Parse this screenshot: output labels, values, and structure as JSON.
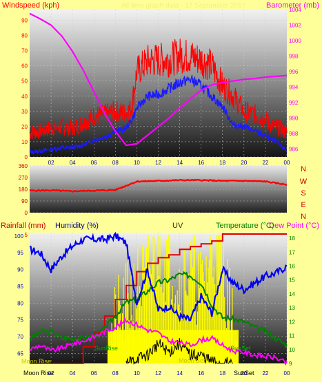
{
  "colors": {
    "page_bg": "#ffff99",
    "wind_avg": "#1a1aff",
    "wind_gust": "#ff0000",
    "barometer": "#ff00ff",
    "direction": "#ff0000",
    "rainfall": "#dd0000",
    "humidity": "#0000ee",
    "uv": "#ffff00",
    "temperature": "#008000",
    "dewpoint": "#ff00ff",
    "solar": "#000000"
  },
  "top_panel": {
    "title_left": "Windspeed (kph)",
    "title_right": "Barometer (mb)",
    "faint_caption": "All time graph data - 17 September 2017",
    "y_left_ticks": [
      "0",
      "10",
      "20",
      "30",
      "40",
      "50",
      "60",
      "70",
      "80",
      "90"
    ],
    "y_right_ticks": [
      "986",
      "988",
      "990",
      "992",
      "994",
      "996",
      "998",
      "1000",
      "1002",
      "1004"
    ],
    "x_ticks": [
      "02",
      "04",
      "06",
      "08",
      "10",
      "12",
      "14",
      "16",
      "18",
      "20",
      "22",
      "00"
    ]
  },
  "middle_panel": {
    "y_ticks": [
      "0",
      "90",
      "180",
      "270",
      "360"
    ],
    "compass": [
      "N",
      "W",
      "S",
      "E",
      "N"
    ]
  },
  "bottom_panel": {
    "title_rain": "Rainfall (mm)",
    "title_humidity": "Humidity (%)",
    "title_uv": "UV",
    "title_temperature": "Temperature (°C)",
    "title_dewpoint": "Dew Point (°C)",
    "y_left_ticks": [
      "65",
      "70",
      "75",
      "80",
      "85",
      "90",
      "95",
      "100"
    ],
    "y_right_ticks": [
      "9",
      "10",
      "11",
      "12",
      "13",
      "14",
      "15",
      "16",
      "17",
      "18"
    ],
    "uv_ticks": [
      "5"
    ],
    "x_ticks": [
      "02",
      "04",
      "06",
      "08",
      "10",
      "12",
      "14",
      "16",
      "18",
      "20",
      "22",
      "00"
    ],
    "event_moon_rise": "Moon Rise",
    "event_sun_set": "SunSet",
    "event_moon_rise_left": "Moon Rise",
    "event_sun_rise": "SunRise",
    "event_moon_set": "Moon Set",
    "event_sun_set_inner": "SunSet"
  },
  "chart_data": [
    {
      "type": "line",
      "x_unit": "hour",
      "xlim": [
        0,
        24
      ],
      "ylim_left": [
        0,
        97
      ],
      "ylim_right": [
        985,
        1004
      ],
      "series": [
        {
          "name": "Windspeed (kph)",
          "axis": "left",
          "x": [
            0,
            1,
            2,
            3,
            4,
            5,
            6,
            7,
            8,
            9,
            9.5,
            10,
            11,
            12,
            13,
            14,
            15,
            16,
            17,
            18,
            19,
            20,
            21,
            22,
            23,
            24
          ],
          "y": [
            3,
            4,
            5,
            6,
            6,
            8,
            11,
            13,
            17,
            19,
            24,
            32,
            40,
            41,
            45,
            49,
            51,
            47,
            40,
            33,
            21,
            20,
            17,
            14,
            10,
            4
          ]
        },
        {
          "name": "Gust",
          "axis": "left",
          "x": [
            0,
            1,
            2,
            3,
            4,
            5,
            6,
            7,
            8,
            9,
            9.5,
            10,
            11,
            12,
            13,
            14,
            15,
            16,
            17,
            18,
            19,
            20,
            21,
            22,
            23,
            24
          ],
          "y": [
            16,
            17,
            19,
            20,
            19,
            22,
            27,
            28,
            30,
            29,
            32,
            56,
            63,
            64,
            64,
            67,
            66,
            64,
            60,
            47,
            40,
            30,
            28,
            24,
            20,
            16
          ]
        },
        {
          "name": "Barometer (mb)",
          "axis": "right",
          "x": [
            0,
            1,
            2,
            3,
            4,
            5,
            6,
            7,
            8,
            9,
            10,
            11,
            12,
            13,
            14,
            15,
            16,
            17,
            18,
            19,
            20,
            21,
            22,
            23,
            24
          ],
          "y": [
            1003.5,
            1002.8,
            1002.0,
            1000.6,
            998.6,
            996.2,
            993.4,
            990.6,
            988.3,
            986.5,
            986.7,
            987.8,
            988.9,
            990.0,
            991.3,
            992.5,
            993.6,
            994.3,
            994.6,
            994.8,
            995.0,
            995.1,
            995.3,
            995.4,
            995.5
          ]
        }
      ]
    },
    {
      "type": "line",
      "x_unit": "hour",
      "xlim": [
        0,
        24
      ],
      "ylim": [
        0,
        360
      ],
      "series": [
        {
          "name": "Wind direction",
          "x": [
            0,
            2,
            4,
            6,
            8,
            10,
            12,
            14,
            16,
            18,
            20,
            22,
            24
          ],
          "y": [
            170,
            172,
            165,
            170,
            175,
            240,
            245,
            250,
            250,
            245,
            245,
            240,
            215
          ]
        }
      ]
    },
    {
      "type": "line",
      "x_unit": "hour",
      "xlim": [
        0,
        24
      ],
      "ylim_left": [
        62,
        101
      ],
      "ylim_right": [
        9,
        18.4
      ],
      "series": [
        {
          "name": "Rainfall (mm)",
          "axis": "right_scaled",
          "x": [
            0,
            2,
            4,
            5,
            6,
            7,
            8,
            9,
            10,
            11,
            12,
            13,
            14,
            15,
            16,
            17,
            18,
            24
          ],
          "y": [
            9,
            9,
            9,
            10.2,
            11.2,
            12.4,
            13.6,
            14.6,
            15.6,
            16.2,
            16.6,
            16.8,
            17.2,
            17.4,
            17.6,
            17.8,
            18.3,
            18.3
          ]
        },
        {
          "name": "Humidity (%)",
          "axis": "left",
          "x": [
            0,
            1,
            2,
            3,
            4,
            5,
            6,
            7,
            8,
            9,
            10,
            11,
            12,
            13,
            14,
            15,
            16,
            17,
            18,
            19,
            20,
            21,
            22,
            23,
            24
          ],
          "y": [
            96,
            95,
            90,
            94,
            97,
            99,
            99,
            99,
            100,
            98,
            80,
            90,
            78,
            79,
            76,
            75,
            82,
            77,
            90,
            86,
            84,
            86,
            88,
            89,
            91
          ]
        },
        {
          "name": "UV",
          "axis": "uv",
          "x": [
            0,
            7,
            8,
            9,
            10,
            11,
            12,
            13,
            14,
            15,
            16,
            17,
            18,
            19,
            20,
            24
          ],
          "y": [
            0,
            0,
            1.5,
            2.2,
            3.0,
            3.5,
            4.5,
            4.0,
            3.2,
            3.8,
            2.8,
            4.5,
            4.2,
            1.0,
            0,
            0
          ]
        },
        {
          "name": "Temperature (°C)",
          "axis": "right",
          "x": [
            0,
            1,
            2,
            3,
            4,
            5,
            6,
            7,
            8,
            9,
            10,
            11,
            12,
            13,
            14,
            15,
            16,
            17,
            18,
            19,
            20,
            21,
            22,
            23,
            24
          ],
          "y": [
            10.7,
            11.3,
            11.3,
            10.8,
            10.8,
            10.8,
            11.0,
            11.5,
            12.4,
            13.4,
            13.6,
            14.2,
            14.8,
            15.0,
            15.4,
            15.3,
            14.8,
            13.2,
            12.3,
            12.2,
            12.0,
            11.6,
            11.3,
            10.8,
            10.3
          ]
        },
        {
          "name": "Dew Point (°C)",
          "axis": "right",
          "x": [
            0,
            1,
            2,
            3,
            4,
            5,
            6,
            7,
            8,
            9,
            10,
            11,
            12,
            13,
            14,
            15,
            16,
            17,
            18,
            19,
            20,
            21,
            22,
            23,
            24
          ],
          "y": [
            10.0,
            10.3,
            9.9,
            10.1,
            10.4,
            10.6,
            10.9,
            11.3,
            11.6,
            12.1,
            11.8,
            11.4,
            11.2,
            10.6,
            10.5,
            10.3,
            10.7,
            10.8,
            10.3,
            9.9,
            9.8,
            9.6,
            9.5,
            9.4,
            9.0
          ]
        },
        {
          "name": "Solar",
          "axis": "right",
          "x": [
            0,
            9,
            10,
            11,
            12,
            13,
            14,
            15,
            16,
            17,
            18,
            19,
            24
          ],
          "y": [
            9,
            9,
            9.3,
            9.6,
            10.4,
            9.8,
            10.4,
            9.6,
            9.6,
            9.1,
            9.0,
            9,
            9
          ]
        }
      ]
    }
  ]
}
